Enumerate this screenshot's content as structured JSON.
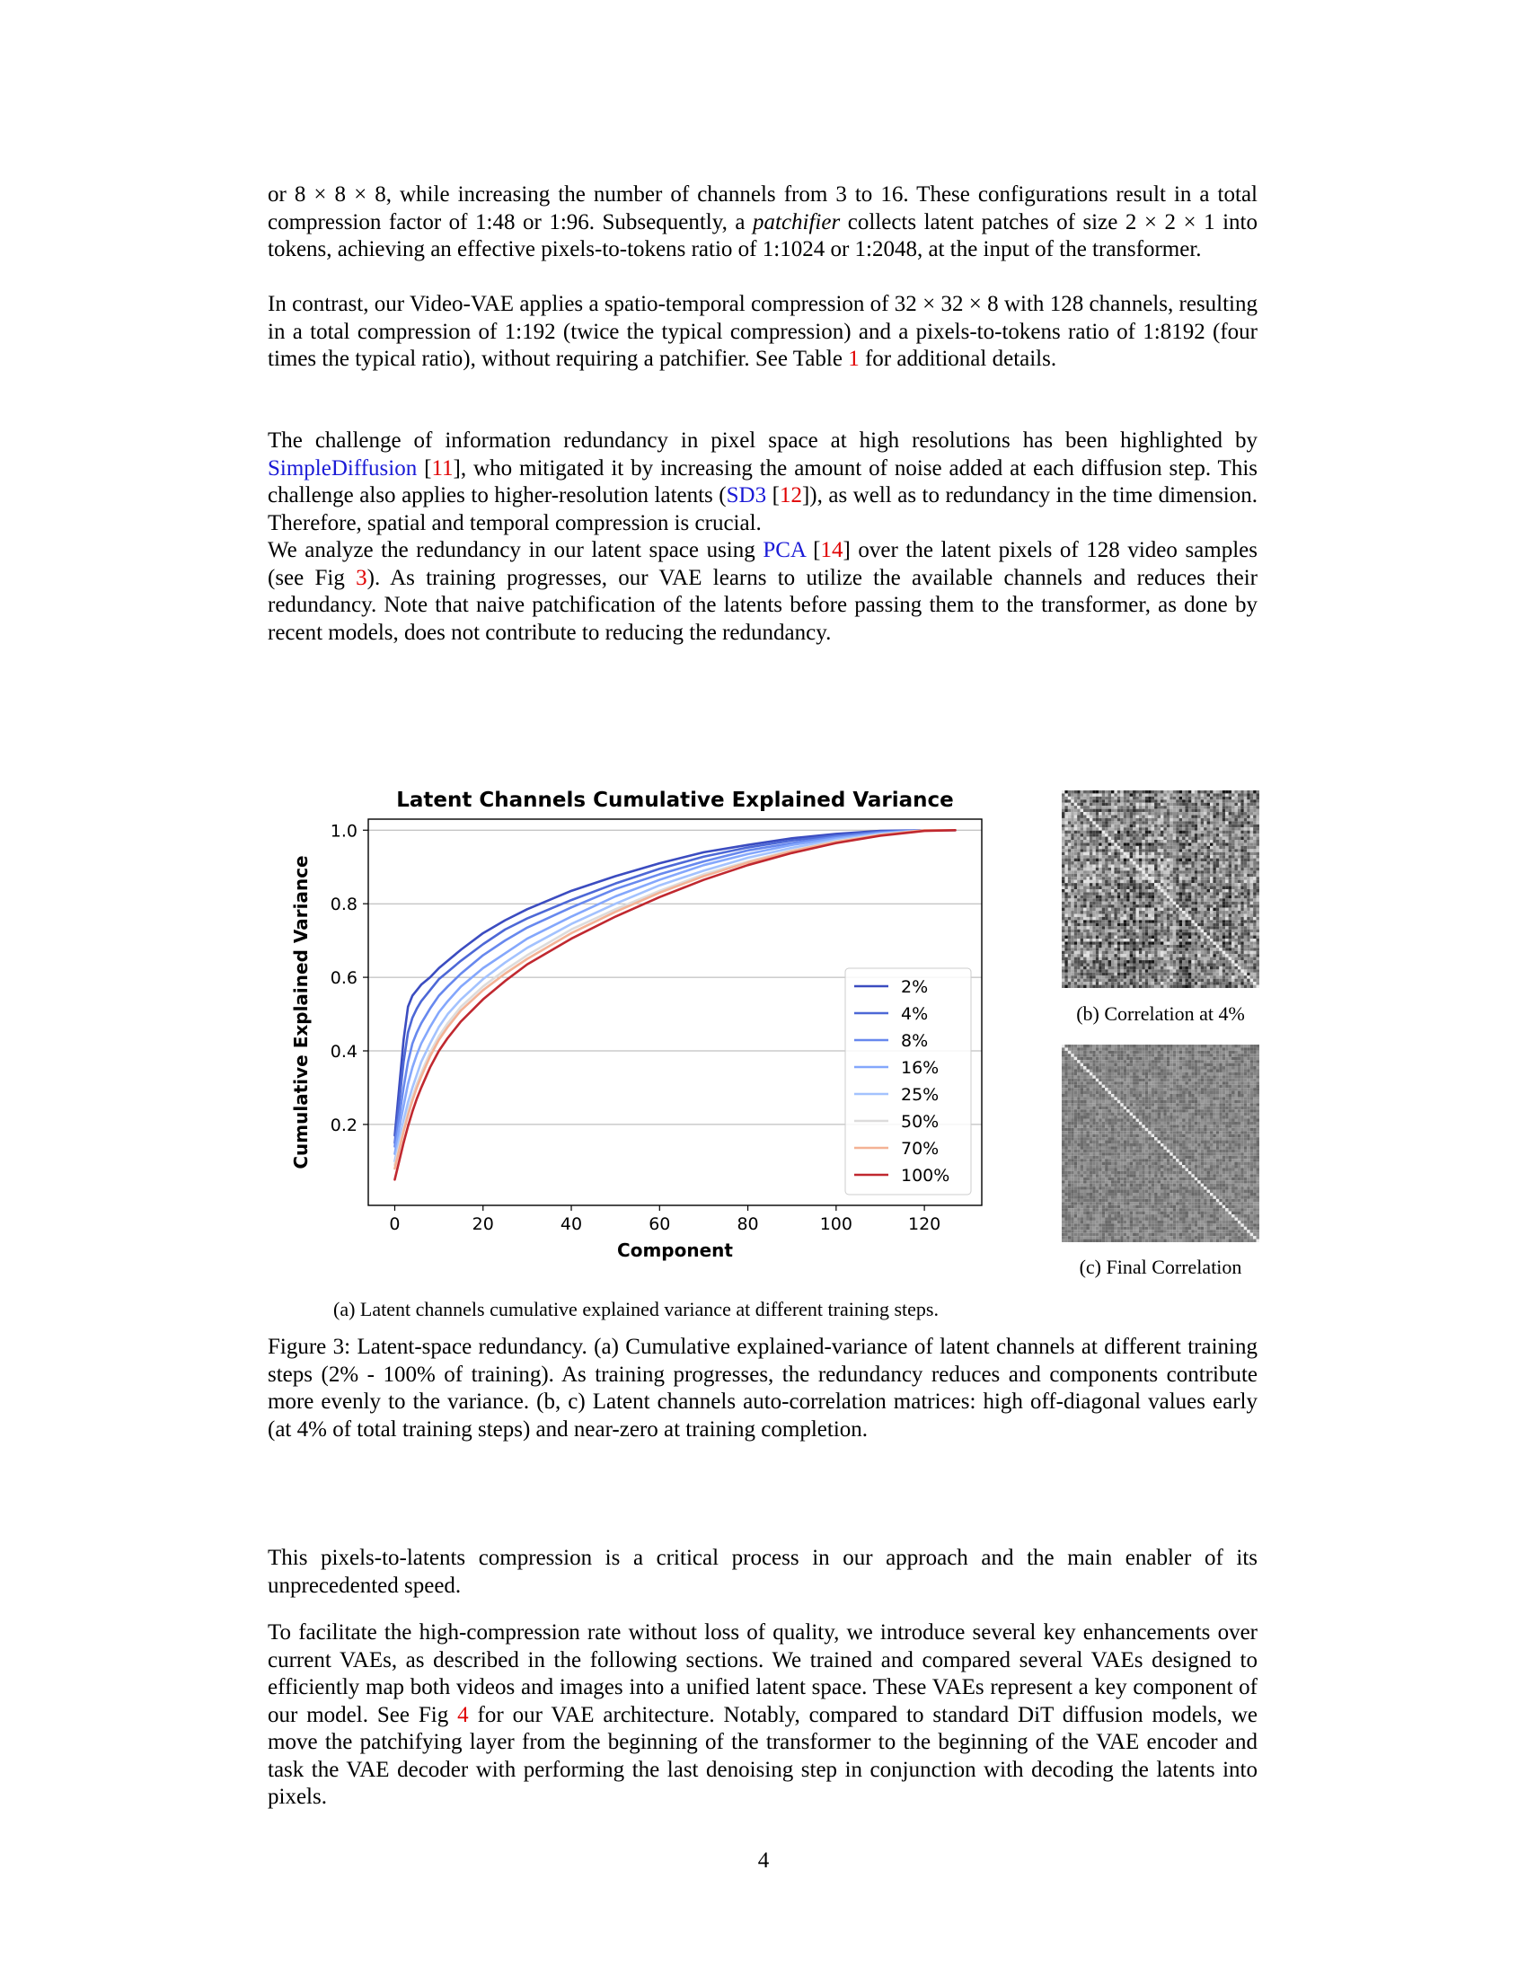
{
  "paragraphs": {
    "p1": {
      "a": "or 8 × 8 × 8, while increasing the number of channels from 3 to 16. These configurations result in a total compression factor of 1:48 or 1:96. Subsequently, a ",
      "em": "patchifier",
      "b": " collects latent patches of size 2 × 2 × 1 into tokens, achieving an effective pixels-to-tokens ratio of 1:1024 or 1:2048, at the input of the transformer."
    },
    "p2": {
      "a": "In contrast, our Video-VAE applies a spatio-temporal compression of 32 × 32 × 8 with 128 channels, resulting in a total compression of 1:192 (twice the typical compression) and a pixels-to-tokens ratio of 1:8192 (four times the typical ratio), without requiring a patchifier. See Table ",
      "ref": "1",
      "b": " for additional details."
    },
    "p3": {
      "a": "The challenge of information redundancy in pixel space at high resolutions has been highlighted by ",
      "link1": "SimpleDiffusion",
      "b": " [",
      "ref1": "11",
      "c": "], who mitigated it by increasing the amount of noise added at each diffusion step. This challenge also applies to higher-resolution latents (",
      "link2": "SD3",
      "d": " [",
      "ref2": "12",
      "e": "]), as well as to redundancy in the time dimension. Therefore, spatial and temporal compression is crucial."
    },
    "p4": {
      "a": "We analyze the redundancy in our latent space using ",
      "link1": "PCA",
      "b": " [",
      "ref1": "14",
      "c": "] over the latent pixels of 128 video samples (see Fig ",
      "ref2": "3",
      "d": "). As training progresses, our VAE learns to utilize the available channels and reduces their redundancy. Note that naive patchification of the latents before passing them to the transformer, as done by recent models, does not contribute to reducing the redundancy."
    },
    "p5": "This pixels-to-latents compression is a critical process in our approach and the main enabler of its unprecedented speed.",
    "p6": {
      "a": "To facilitate the high-compression rate without loss of quality, we introduce several key enhancements over current VAEs, as described in the following sections. We trained and compared several VAEs designed to efficiently map both videos and images into a unified latent space. These VAEs represent a key component of our model. See Fig ",
      "ref": "4",
      "b": " for our VAE architecture. Notably, compared to standard DiT diffusion models, we move the patchifying layer from the beginning of the transformer to the beginning of the VAE encoder and task the VAE decoder with performing the last denoising step in conjunction with decoding the latents into pixels."
    }
  },
  "figure": {
    "caption_a": "(a) Latent channels cumulative explained variance at different training steps.",
    "caption_b": "(b) Correlation at 4%",
    "caption_c": "(c) Final Correlation",
    "caption": "Figure 3: Latent-space redundancy. (a) Cumulative explained-variance of latent channels at different training steps (2% - 100% of training). As training progresses, the redundancy reduces and components contribute more evenly to the variance. (b, c) Latent channels auto-correlation matrices: high off-diagonal values early (at 4% of total training steps) and near-zero at training completion."
  },
  "page_number": "4",
  "chart_data": {
    "type": "line",
    "title": "Latent Channels Cumulative Explained Variance",
    "xlabel": "Component",
    "ylabel": "Cumulative Explained Variance",
    "xlim": [
      -6,
      133
    ],
    "ylim": [
      -0.02,
      1.03
    ],
    "xticks": [
      0,
      20,
      40,
      60,
      80,
      100,
      120
    ],
    "yticks": [
      0.2,
      0.4,
      0.6,
      0.8,
      1.0
    ],
    "ytick_labels": [
      "0.2",
      "0.4",
      "0.6",
      "0.8",
      "1.0"
    ],
    "grid": "horizontal",
    "legend_position": "lower-right",
    "x": [
      0,
      1,
      2,
      3,
      4,
      5,
      6,
      8,
      10,
      12,
      15,
      20,
      25,
      30,
      40,
      50,
      60,
      70,
      80,
      90,
      100,
      110,
      120,
      127
    ],
    "series": [
      {
        "name": "2%",
        "color": "#3b4cc0",
        "values": [
          0.17,
          0.3,
          0.43,
          0.52,
          0.55,
          0.565,
          0.58,
          0.6,
          0.625,
          0.645,
          0.675,
          0.72,
          0.755,
          0.785,
          0.835,
          0.875,
          0.91,
          0.94,
          0.96,
          0.978,
          0.99,
          0.998,
          1.0,
          1.0
        ]
      },
      {
        "name": "4%",
        "color": "#4d68d6",
        "values": [
          0.15,
          0.26,
          0.37,
          0.45,
          0.49,
          0.515,
          0.535,
          0.565,
          0.595,
          0.615,
          0.645,
          0.69,
          0.73,
          0.76,
          0.81,
          0.855,
          0.895,
          0.928,
          0.953,
          0.972,
          0.986,
          0.996,
          1.0,
          1.0
        ]
      },
      {
        "name": "8%",
        "color": "#6788ee",
        "values": [
          0.14,
          0.22,
          0.3,
          0.37,
          0.42,
          0.45,
          0.475,
          0.515,
          0.55,
          0.575,
          0.61,
          0.66,
          0.7,
          0.735,
          0.79,
          0.84,
          0.88,
          0.915,
          0.945,
          0.965,
          0.982,
          0.994,
          1.0,
          1.0
        ]
      },
      {
        "name": "16%",
        "color": "#84a7fc",
        "values": [
          0.12,
          0.19,
          0.25,
          0.31,
          0.355,
          0.39,
          0.42,
          0.465,
          0.505,
          0.535,
          0.575,
          0.625,
          0.665,
          0.705,
          0.765,
          0.82,
          0.865,
          0.905,
          0.935,
          0.96,
          0.978,
          0.992,
          1.0,
          1.0
        ]
      },
      {
        "name": "25%",
        "color": "#a3c2fe",
        "values": [
          0.1,
          0.16,
          0.21,
          0.26,
          0.3,
          0.335,
          0.37,
          0.42,
          0.465,
          0.5,
          0.54,
          0.595,
          0.64,
          0.68,
          0.745,
          0.8,
          0.85,
          0.89,
          0.925,
          0.952,
          0.974,
          0.99,
          1.0,
          1.0
        ]
      },
      {
        "name": "50%",
        "color": "#dddcdc",
        "values": [
          0.09,
          0.14,
          0.19,
          0.235,
          0.275,
          0.31,
          0.34,
          0.395,
          0.44,
          0.475,
          0.52,
          0.575,
          0.62,
          0.66,
          0.73,
          0.785,
          0.835,
          0.88,
          0.915,
          0.945,
          0.97,
          0.988,
          1.0,
          1.0
        ]
      },
      {
        "name": "70%",
        "color": "#f4b295",
        "values": [
          0.08,
          0.13,
          0.18,
          0.225,
          0.265,
          0.3,
          0.33,
          0.385,
          0.43,
          0.465,
          0.51,
          0.565,
          0.61,
          0.65,
          0.72,
          0.778,
          0.83,
          0.875,
          0.912,
          0.943,
          0.968,
          0.987,
          1.0,
          1.0
        ]
      },
      {
        "name": "100%",
        "color": "#c0282f",
        "values": [
          0.05,
          0.1,
          0.15,
          0.195,
          0.235,
          0.27,
          0.3,
          0.355,
          0.4,
          0.435,
          0.48,
          0.54,
          0.59,
          0.635,
          0.705,
          0.765,
          0.818,
          0.865,
          0.905,
          0.938,
          0.965,
          0.985,
          0.998,
          1.0
        ]
      }
    ]
  }
}
